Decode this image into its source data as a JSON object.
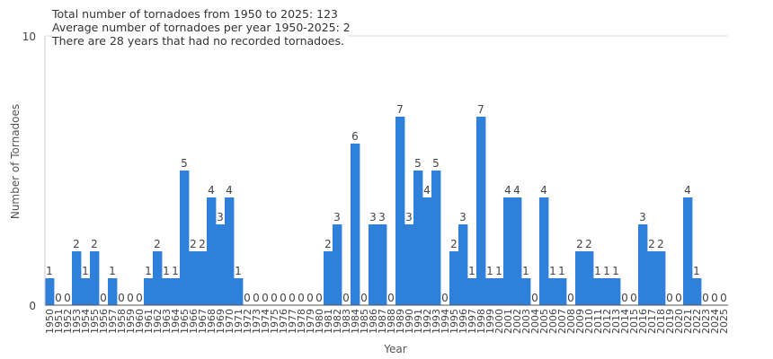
{
  "info": {
    "line1": "Total number of tornadoes from 1950 to 2025: 123",
    "line2": "Average number of tornadoes per year 1950-2025: 2",
    "line3": "There are 28 years that had no recorded tornadoes."
  },
  "chart_data": {
    "type": "bar",
    "xlabel": "Year",
    "ylabel": "Number of Tornadoes",
    "ylim": [
      0,
      10
    ],
    "yticks": [
      "0",
      "10"
    ],
    "grid": true,
    "color": "#2f80d9",
    "categories": [
      "1950",
      "1951",
      "1952",
      "1953",
      "1954",
      "1955",
      "1956",
      "1957",
      "1958",
      "1959",
      "1960",
      "1961",
      "1962",
      "1963",
      "1964",
      "1965",
      "1966",
      "1967",
      "1968",
      "1969",
      "1970",
      "1971",
      "1972",
      "1973",
      "1974",
      "1975",
      "1976",
      "1977",
      "1978",
      "1979",
      "1980",
      "1981",
      "1982",
      "1983",
      "1984",
      "1985",
      "1986",
      "1987",
      "1988",
      "1989",
      "1990",
      "1991",
      "1992",
      "1993",
      "1994",
      "1995",
      "1996",
      "1997",
      "1998",
      "1999",
      "2000",
      "2001",
      "2002",
      "2003",
      "2004",
      "2005",
      "2006",
      "2007",
      "2008",
      "2009",
      "2010",
      "2011",
      "2012",
      "2013",
      "2014",
      "2015",
      "2016",
      "2017",
      "2018",
      "2019",
      "2020",
      "2021",
      "2022",
      "2023",
      "2024",
      "2025"
    ],
    "values": [
      1,
      0,
      0,
      2,
      1,
      2,
      0,
      1,
      0,
      0,
      0,
      1,
      2,
      1,
      1,
      5,
      2,
      2,
      4,
      3,
      4,
      1,
      0,
      0,
      0,
      0,
      0,
      0,
      0,
      0,
      0,
      2,
      3,
      0,
      6,
      0,
      3,
      3,
      0,
      7,
      3,
      5,
      4,
      5,
      0,
      2,
      3,
      1,
      7,
      1,
      1,
      4,
      4,
      1,
      0,
      4,
      1,
      1,
      0,
      2,
      2,
      1,
      1,
      1,
      0,
      0,
      3,
      2,
      2,
      0,
      0,
      4,
      1,
      0,
      0,
      0
    ]
  }
}
